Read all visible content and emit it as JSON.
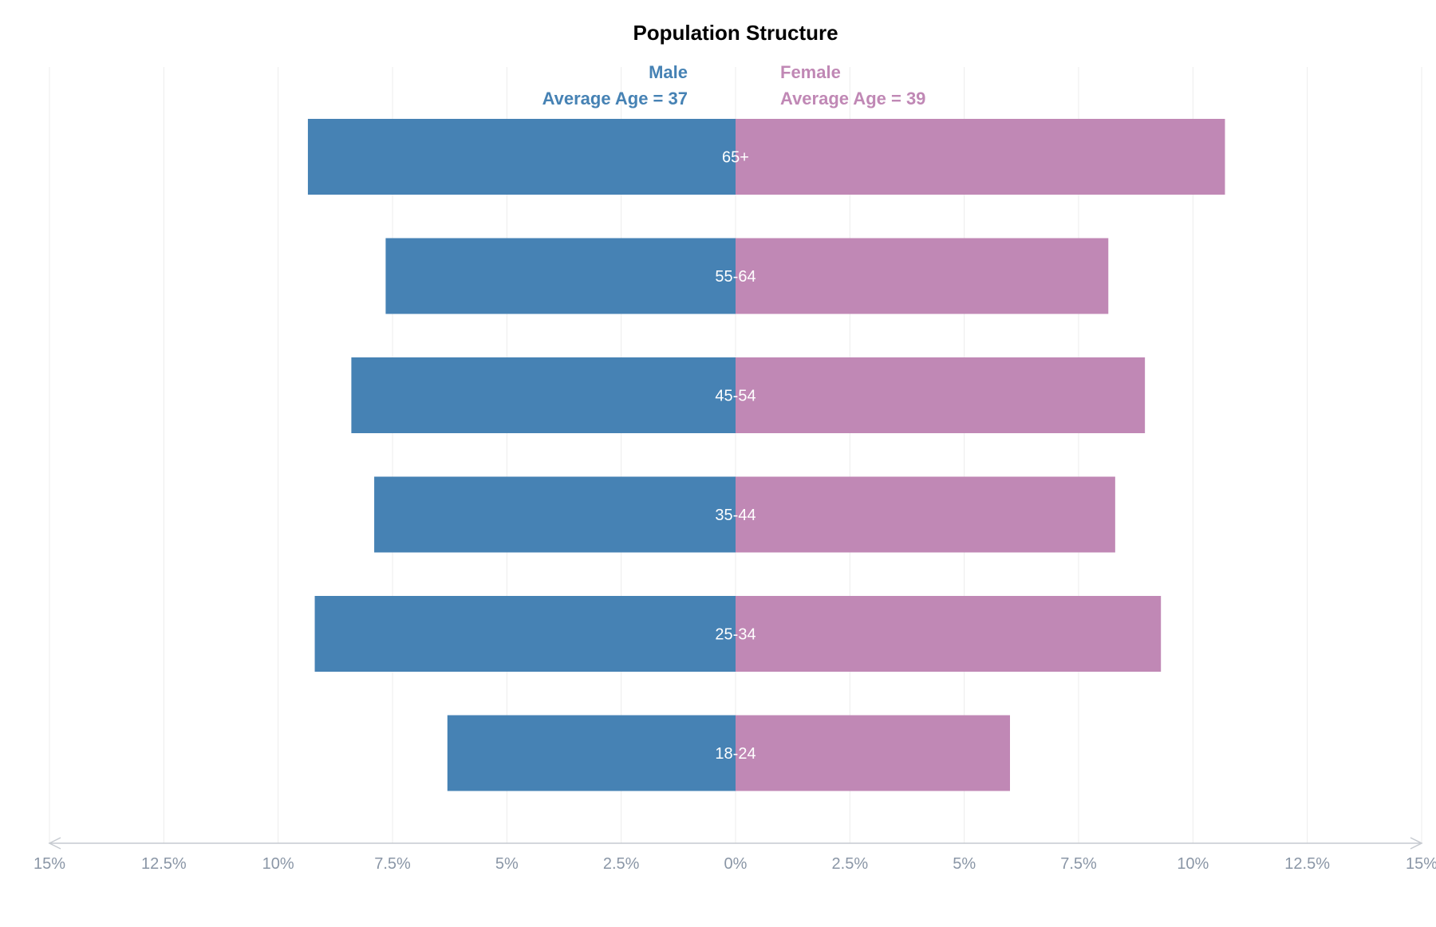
{
  "chart_data": {
    "type": "bar",
    "orientation": "horizontal",
    "layout": "population-pyramid",
    "title": "Population Structure",
    "categories": [
      "65+",
      "55-64",
      "45-54",
      "35-44",
      "25-34",
      "18-24"
    ],
    "series": [
      {
        "name": "Male",
        "subtitle": "Average Age = 37",
        "color": "#4682b4",
        "values": [
          9.35,
          7.65,
          8.4,
          7.9,
          9.2,
          6.3
        ]
      },
      {
        "name": "Female",
        "subtitle": "Average Age = 39",
        "color": "#c088b5",
        "values": [
          10.7,
          8.15,
          8.95,
          8.3,
          9.3,
          6.0
        ]
      }
    ],
    "xlim": [
      -15,
      15
    ],
    "x_ticks": [
      -15,
      -12.5,
      -10,
      -7.5,
      -5,
      -2.5,
      0,
      2.5,
      5,
      7.5,
      10,
      12.5,
      15
    ],
    "x_tick_labels": [
      "15%",
      "12.5%",
      "10%",
      "7.5%",
      "5%",
      "2.5%",
      "0%",
      "2.5%",
      "5%",
      "7.5%",
      "10%",
      "12.5%",
      "15%"
    ],
    "grid": true,
    "legend": "top-center"
  }
}
